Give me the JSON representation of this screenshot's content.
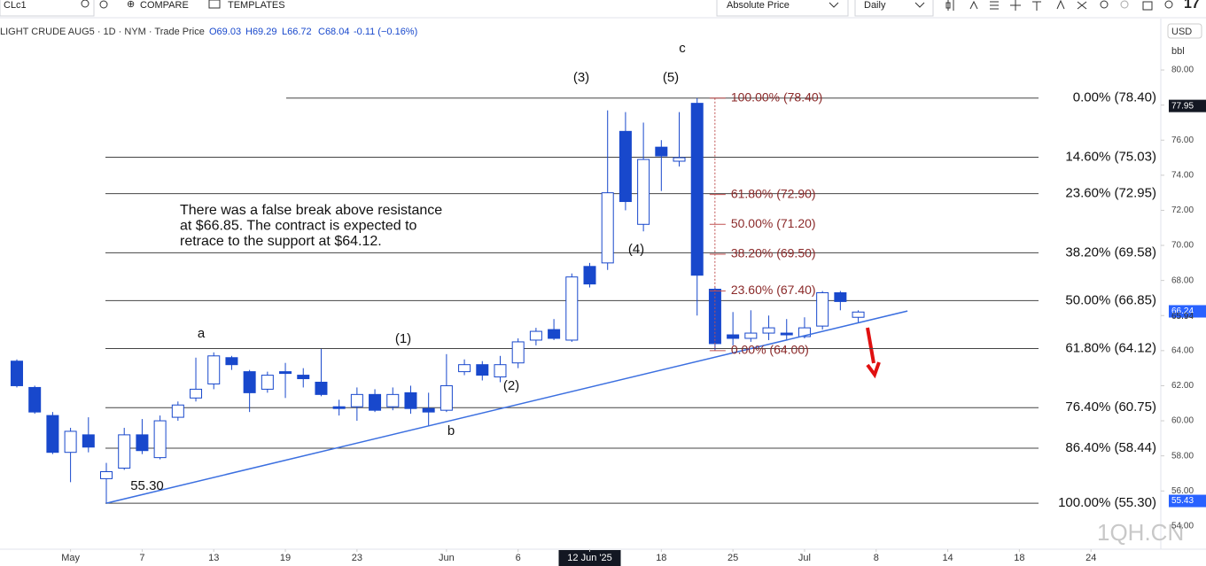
{
  "toolbar": {
    "symbol": "CLc1",
    "compare": "COMPARE",
    "templates": "TEMPLATES",
    "scale_mode": "Absolute Price",
    "interval": "Daily"
  },
  "legend": {
    "instrument": "LIGHT CRUDE AUG5 · 1D · NYM · Trade Price",
    "open": "O69.03",
    "high": "H69.29",
    "low": "L66.72",
    "close": "C68.04",
    "change": "-0.11 (−0.16%)"
  },
  "price_axis": {
    "currency": "USD",
    "unit": "bbl"
  },
  "watermark": "1QH.CN",
  "chart_data": {
    "type": "candlestick",
    "xlim": [
      -0.94,
      63.9
    ],
    "ylim": [
      52.68,
      82.88
    ],
    "yticks": [
      {
        "value": 54,
        "label": "54.00"
      },
      {
        "value": 56,
        "label": "56.00"
      },
      {
        "value": 58,
        "label": "58.00"
      },
      {
        "value": 60,
        "label": "60.00"
      },
      {
        "value": 62,
        "label": "62.00"
      },
      {
        "value": 64,
        "label": "64.00"
      },
      {
        "value": 66,
        "label": "66.00"
      },
      {
        "value": 68,
        "label": "68.00"
      },
      {
        "value": 70,
        "label": "70.00"
      },
      {
        "value": 72,
        "label": "72.00"
      },
      {
        "value": 74,
        "label": "74.00"
      },
      {
        "value": 76,
        "label": "76.00"
      },
      {
        "value": 78,
        "label": "78.00"
      },
      {
        "value": 80,
        "label": "80.00"
      }
    ],
    "xticks": [
      {
        "value": 3,
        "label": "May"
      },
      {
        "value": 7,
        "label": "7"
      },
      {
        "value": 11,
        "label": "13"
      },
      {
        "value": 15,
        "label": "19"
      },
      {
        "value": 19,
        "label": "23"
      },
      {
        "value": 24,
        "label": "Jun"
      },
      {
        "value": 28,
        "label": "6"
      },
      {
        "value": 32,
        "label": "12 Jun '25"
      },
      {
        "value": 36,
        "label": "18"
      },
      {
        "value": 40,
        "label": "25"
      },
      {
        "value": 44,
        "label": "Jul"
      },
      {
        "value": 48,
        "label": "8"
      },
      {
        "value": 52,
        "label": "14"
      },
      {
        "value": 56,
        "label": "18"
      },
      {
        "value": 60,
        "label": "24"
      }
    ],
    "color": "#1848cc",
    "open": [
      63.4,
      61.9,
      60.3,
      58.2,
      59.2,
      56.7,
      57.3,
      59.2,
      57.9,
      60.2,
      61.3,
      62.1,
      63.6,
      62.8,
      61.8,
      62.8,
      62.6,
      62.2,
      60.8,
      60.8,
      61.5,
      60.8,
      61.6,
      60.7,
      60.6,
      62.8,
      63.2,
      62.5,
      63.3,
      64.6,
      65.2,
      64.6,
      68.8,
      69.0,
      76.5,
      71.2,
      75.6,
      74.8,
      78.1,
      67.5,
      64.9,
      64.7,
      65.0,
      65.0,
      64.8,
      65.4,
      67.3,
      65.9
    ],
    "high": [
      63.5,
      62.0,
      60.5,
      59.6,
      60.2,
      57.6,
      59.6,
      60.1,
      60.3,
      61.1,
      63.6,
      63.9,
      63.7,
      62.9,
      62.8,
      63.3,
      63.0,
      64.1,
      61.2,
      61.9,
      61.8,
      61.9,
      62.0,
      61.6,
      63.8,
      63.5,
      63.4,
      63.7,
      64.7,
      65.3,
      65.8,
      68.4,
      69.0,
      77.7,
      77.6,
      77.0,
      76.0,
      77.6,
      78.4,
      67.6,
      66.2,
      66.3,
      66.0,
      65.8,
      65.9,
      67.4,
      67.4,
      66.3
    ],
    "low": [
      61.9,
      60.4,
      58.1,
      56.5,
      58.2,
      55.3,
      57.2,
      58.1,
      57.8,
      60.0,
      61.1,
      61.8,
      62.9,
      60.5,
      61.6,
      61.3,
      61.9,
      61.4,
      60.3,
      60.0,
      60.5,
      60.6,
      60.4,
      59.7,
      60.5,
      62.6,
      62.3,
      62.2,
      63.0,
      64.3,
      64.6,
      64.5,
      67.6,
      68.6,
      72.0,
      70.8,
      73.1,
      74.5,
      66.0,
      64.0,
      64.3,
      64.5,
      64.6,
      64.6,
      64.7,
      65.2,
      66.3,
      65.6
    ],
    "close": [
      62.0,
      60.5,
      58.2,
      59.4,
      58.5,
      57.1,
      59.2,
      58.3,
      60.0,
      60.9,
      61.8,
      63.7,
      63.2,
      61.6,
      62.6,
      62.7,
      62.4,
      61.5,
      60.7,
      61.5,
      60.6,
      61.5,
      60.7,
      60.5,
      62.0,
      63.2,
      62.6,
      63.2,
      64.5,
      65.1,
      64.7,
      68.2,
      67.8,
      73.0,
      72.5,
      74.9,
      75.1,
      75.0,
      68.3,
      64.4,
      64.7,
      65.0,
      65.3,
      64.9,
      65.3,
      67.3,
      66.8,
      66.2
    ],
    "fib_levels": [
      {
        "value": 78.4,
        "label": "0.00% (78.40)"
      },
      {
        "value": 75.03,
        "label": "14.60% (75.03)"
      },
      {
        "value": 72.95,
        "label": "23.60% (72.95)"
      },
      {
        "value": 69.58,
        "label": "38.20% (69.58)"
      },
      {
        "value": 66.85,
        "label": "50.00% (66.85)"
      },
      {
        "value": 64.12,
        "label": "61.80% (64.12)"
      },
      {
        "value": 60.75,
        "label": "76.40% (60.75)"
      },
      {
        "value": 58.44,
        "label": "86.40% (58.44)"
      },
      {
        "value": 55.3,
        "label": "100.00% (55.30)"
      }
    ],
    "inner_fib_levels": [
      {
        "value": 78.4,
        "label": "100.00% (78.40)"
      },
      {
        "value": 72.9,
        "label": "61.80% (72.90)"
      },
      {
        "value": 71.2,
        "label": "50.00% (71.20)"
      },
      {
        "value": 69.5,
        "label": "38.20% (69.50)"
      },
      {
        "value": 67.4,
        "label": "23.60% (67.40)"
      },
      {
        "value": 64.0,
        "label": "0.00% (64.00)"
      }
    ],
    "trendline": {
      "x": [
        5,
        49.75
      ],
      "y": [
        55.3,
        66.26
      ]
    },
    "price_tags": [
      {
        "value": 77.95,
        "label": "77.95"
      },
      {
        "value": 66.24,
        "label": "66.24"
      },
      {
        "value": 65.94,
        "label": "65.94"
      },
      {
        "value": 55.43,
        "label": "55.43"
      }
    ],
    "wave_labels": [
      "c",
      "(3)",
      "(5)",
      "(4)",
      "(1)",
      "a",
      "(2)",
      "b",
      "55.30"
    ],
    "annotation": [
      "There was a false break above resistance",
      "at $66.85. The contract is expected to",
      "retrace to the support at $64.12."
    ]
  }
}
